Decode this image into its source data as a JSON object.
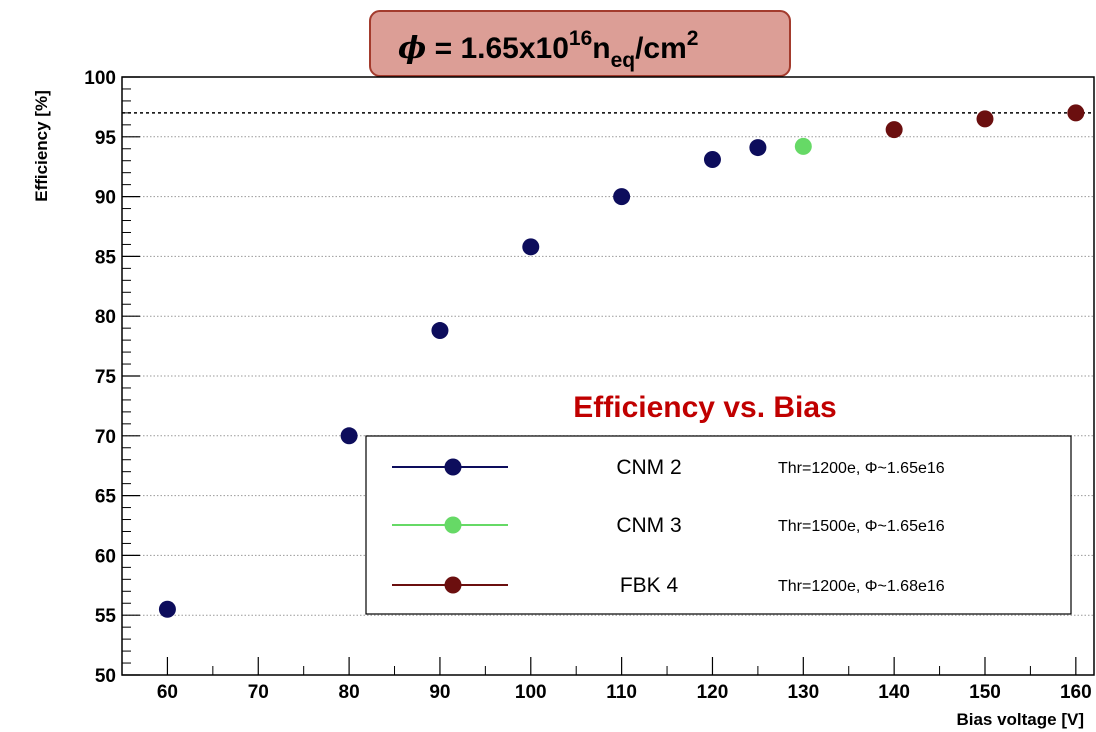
{
  "chart_data": {
    "type": "scatter",
    "title": {
      "symbol": "ϕ",
      "eq": " = 1.65x10",
      "exp": "16",
      "n": "n",
      "sub": "eq",
      "unit": "/cm",
      "unit_exp": "2"
    },
    "annotation": "Efficiency vs. Bias",
    "xlabel": "Bias voltage [V]",
    "ylabel": "Efficiency [%]",
    "xlim": [
      55,
      162
    ],
    "ylim": [
      50,
      100
    ],
    "xticks": [
      60,
      70,
      80,
      90,
      100,
      110,
      120,
      130,
      140,
      150,
      160
    ],
    "yticks": [
      50,
      55,
      60,
      65,
      70,
      75,
      80,
      85,
      90,
      95,
      100
    ],
    "grid": "horizontal",
    "reference_line": 97,
    "legend_position": "lower-right",
    "series": [
      {
        "name": "CNM 2",
        "description": "Thr=1200e, Φ~1.65e16",
        "color": "#0d0d5c",
        "points": [
          [
            60,
            55.5
          ],
          [
            80,
            70.0
          ],
          [
            90,
            78.8
          ],
          [
            100,
            85.8
          ],
          [
            110,
            90.0
          ],
          [
            120,
            93.1
          ],
          [
            125,
            94.1
          ]
        ]
      },
      {
        "name": "CNM 3",
        "description": "Thr=1500e, Φ~1.65e16",
        "color": "#66d966",
        "points": [
          [
            130,
            94.2
          ]
        ]
      },
      {
        "name": "FBK 4",
        "description": "Thr=1200e, Φ~1.68e16",
        "color": "#6b0f0f",
        "points": [
          [
            140,
            95.6
          ],
          [
            150,
            96.5
          ],
          [
            160,
            97.0
          ]
        ]
      }
    ]
  },
  "colors": {
    "title_box_fill": "#dc9e96",
    "title_box_border": "#a33b2d",
    "annotation": "#c00000"
  }
}
